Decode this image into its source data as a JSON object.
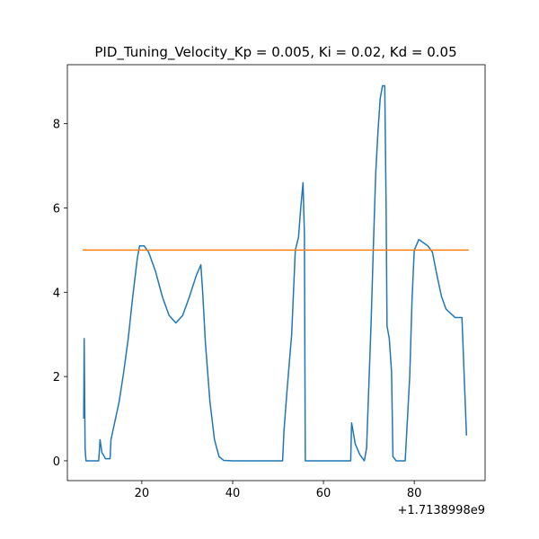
{
  "chart_data": {
    "type": "line",
    "title": "PID_Tuning_Velocity_Kp = 0.005, Ki = 0.02, Kd = 0.05",
    "offset_label": "+1.7138998e9",
    "xlim": [
      3.6,
      95.6
    ],
    "xticks": [
      20,
      40,
      60,
      80
    ],
    "ylim": [
      -0.47,
      9.4
    ],
    "yticks": [
      0,
      2,
      4,
      6,
      8
    ],
    "grid": false,
    "series": [
      {
        "color": "#1f77b4",
        "x": [
          7.2,
          7.3,
          7.5,
          7.7,
          10.5,
          10.8,
          11.2,
          12,
          13,
          13.2,
          14,
          15,
          16,
          17,
          18,
          19,
          19.5,
          20.5,
          21.5,
          23,
          24.5,
          26,
          27.5,
          29,
          30.5,
          32,
          33,
          33.4,
          34,
          35,
          36,
          37,
          38,
          40,
          51,
          51.3,
          52,
          53,
          53.8,
          54.5,
          55,
          55.5,
          55.8,
          56,
          66,
          66.2,
          67,
          68,
          69,
          69.5,
          70,
          70.5,
          71,
          71.5,
          72,
          72.5,
          73,
          73.5,
          73.8,
          74,
          74.5,
          75,
          75.3,
          76,
          78,
          79,
          79.5,
          80,
          81,
          83,
          84,
          85,
          86,
          87,
          88,
          89,
          90.5,
          91.5
        ],
        "values": [
          1.0,
          2.9,
          0.3,
          0,
          0,
          0.5,
          0.2,
          0.05,
          0.05,
          0.5,
          0.9,
          1.4,
          2.1,
          2.9,
          3.9,
          4.8,
          5.1,
          5.1,
          4.95,
          4.5,
          3.9,
          3.45,
          3.27,
          3.45,
          3.9,
          4.4,
          4.65,
          4.0,
          2.8,
          1.4,
          0.5,
          0.1,
          0.01,
          0,
          0,
          0.7,
          1.7,
          3.0,
          5.0,
          5.3,
          6.0,
          6.6,
          5.4,
          0,
          0,
          0.9,
          0.4,
          0.15,
          0,
          0.3,
          1.8,
          3.3,
          5.1,
          6.8,
          7.8,
          8.6,
          8.9,
          8.9,
          6.0,
          3.2,
          2.9,
          2.1,
          0.1,
          0,
          0,
          2.0,
          3.8,
          5.0,
          5.25,
          5.1,
          4.95,
          4.4,
          3.9,
          3.6,
          3.5,
          3.4,
          3.4,
          0.6
        ]
      },
      {
        "color": "#ff7f0e",
        "x": [
          7,
          92
        ],
        "values": [
          5,
          5
        ]
      }
    ]
  }
}
